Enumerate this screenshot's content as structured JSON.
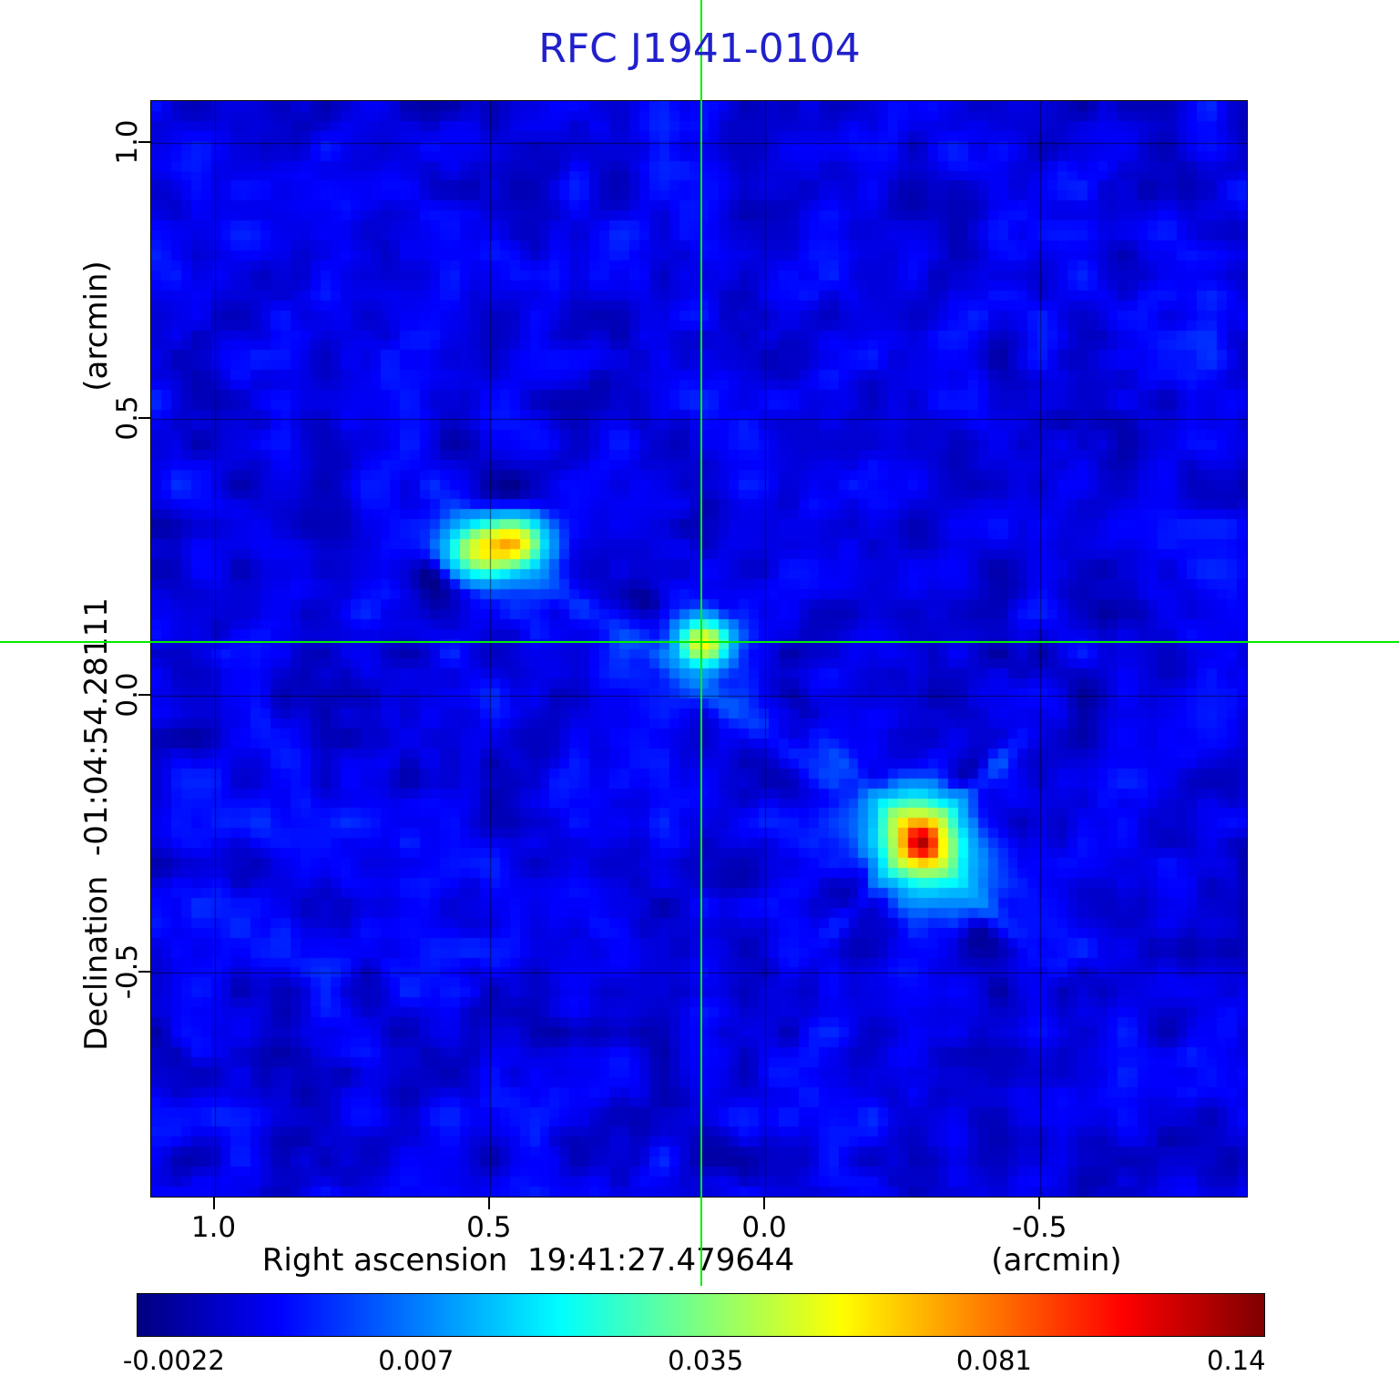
{
  "colors": {
    "title": "#2020cc",
    "crosshair": "#00ee00",
    "gridline": "rgba(0,0,0,0.55)"
  },
  "chart_data": {
    "type": "heatmap",
    "title": "RFC J1941-0104",
    "xlabel": "Right ascension  19:41:27.479644",
    "xunit": "(arcmin)",
    "ylabel": "Declination  -01:04:54.28111",
    "yunit": "(arcmin)",
    "xlim": [
      1.115,
      -0.875
    ],
    "ylim": [
      -0.905,
      1.075
    ],
    "xticks": [
      1.0,
      0.5,
      0.0,
      -0.5
    ],
    "xtick_labels": [
      "1.0",
      "0.5",
      "0.0",
      "-0.5"
    ],
    "yticks": [
      1.0,
      0.5,
      0.0,
      -0.5
    ],
    "ytick_labels": [
      "1.0",
      "0.5",
      "0.0",
      "-0.5"
    ],
    "grid": true,
    "crosshair": {
      "x": 0.115,
      "y": 0.095
    },
    "colorbar": {
      "ticks": [
        -0.0022,
        0.007,
        0.035,
        0.081,
        0.14
      ],
      "tick_labels": [
        "-0.0022",
        "0.007",
        "0.035",
        "0.081",
        "0.14"
      ],
      "tick_positions": [
        0.033,
        0.248,
        0.505,
        0.761,
        0.976
      ],
      "colormap": "jet"
    },
    "background_level": 0.0015,
    "noise_amplitude": 0.0024,
    "components": [
      {
        "x": 0.455,
        "y": 0.277,
        "amp": 0.052,
        "sx": 0.03,
        "sy": 0.026,
        "rot": 0
      },
      {
        "x": 0.515,
        "y": 0.262,
        "amp": 0.046,
        "sx": 0.036,
        "sy": 0.03,
        "rot": 0
      },
      {
        "x": 0.48,
        "y": 0.27,
        "amp": 0.008,
        "sx": 0.07,
        "sy": 0.05,
        "rot": 25
      },
      {
        "x": 0.112,
        "y": 0.095,
        "amp": 0.05,
        "sx": 0.027,
        "sy": 0.025,
        "rot": 0
      },
      {
        "x": 0.112,
        "y": 0.095,
        "amp": 0.008,
        "sx": 0.05,
        "sy": 0.04,
        "rot": 35
      },
      {
        "x": -0.282,
        "y": -0.262,
        "amp": 0.062,
        "sx": 0.042,
        "sy": 0.048,
        "rot": -25
      },
      {
        "x": -0.285,
        "y": -0.268,
        "amp": 0.04,
        "sx": 0.02,
        "sy": 0.022,
        "rot": 0
      },
      {
        "x": -0.282,
        "y": -0.262,
        "amp": 0.008,
        "sx": 0.14,
        "sy": 0.014,
        "rot": 45
      },
      {
        "x": -0.282,
        "y": -0.262,
        "amp": 0.008,
        "sx": 0.14,
        "sy": 0.014,
        "rot": -45
      },
      {
        "x": -0.282,
        "y": -0.262,
        "amp": 0.01,
        "sx": 0.09,
        "sy": 0.07,
        "rot": 35
      },
      {
        "x": 0.1,
        "y": 0.004,
        "amp": 0.0035,
        "sx": 0.3,
        "sy": 0.018,
        "rot": 35
      },
      {
        "x": -0.19,
        "y": -0.165,
        "amp": -0.005,
        "sx": 0.03,
        "sy": 0.025,
        "rot": 0
      },
      {
        "x": -0.185,
        "y": -0.36,
        "amp": -0.005,
        "sx": 0.032,
        "sy": 0.03,
        "rot": 0
      },
      {
        "x": -0.375,
        "y": -0.45,
        "amp": -0.0045,
        "sx": 0.035,
        "sy": 0.03,
        "rot": 0
      },
      {
        "x": -0.38,
        "y": -0.16,
        "amp": -0.004,
        "sx": 0.03,
        "sy": 0.03,
        "rot": 0
      },
      {
        "x": 0.49,
        "y": 0.37,
        "amp": -0.0045,
        "sx": 0.04,
        "sy": 0.03,
        "rot": 0
      },
      {
        "x": 0.6,
        "y": 0.205,
        "amp": -0.004,
        "sx": 0.03,
        "sy": 0.028,
        "rot": 0
      },
      {
        "x": 0.21,
        "y": 0.165,
        "amp": -0.004,
        "sx": 0.028,
        "sy": 0.02,
        "rot": 35
      },
      {
        "x": -0.05,
        "y": 0.0,
        "amp": -0.0035,
        "sx": 0.03,
        "sy": 0.02,
        "rot": 35
      }
    ]
  }
}
